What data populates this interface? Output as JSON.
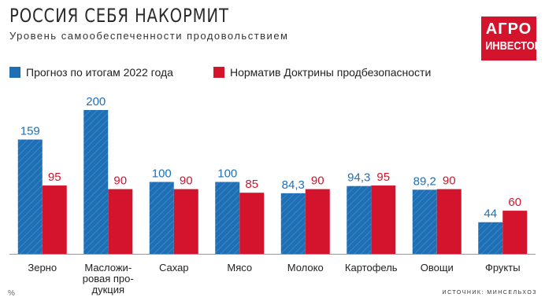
{
  "title": "РОССИЯ СЕБЯ НАКОРМИТ",
  "subtitle": "Уровень самообеспеченности продовольствием",
  "logo": {
    "line1": "АГРО",
    "line2": "ИНВЕСТОР"
  },
  "source": "ИСТОЧНИК: МИНСЕЛЬХОЗ",
  "corner_mark": "%",
  "colors": {
    "series1": "#1f6fb4",
    "series2": "#d3142c",
    "logo_bg": "#d3142c",
    "axis": "#999999"
  },
  "chart_data": {
    "type": "bar",
    "categories": [
      "Зерно",
      "Масложи-\nровая про-\nдукция",
      "Сахар",
      "Мясо",
      "Молоко",
      "Картофель",
      "Овощи",
      "Фрукты"
    ],
    "series": [
      {
        "name": "Прогноз по итогам 2022 года",
        "values": [
          159,
          200,
          100,
          100,
          84.3,
          94.3,
          89.2,
          44
        ],
        "labels": [
          "159",
          "200",
          "100",
          "100",
          "84,3",
          "94,3",
          "89,2",
          "44"
        ]
      },
      {
        "name": "Норматив Доктрины продбезопасности",
        "values": [
          95,
          90,
          90,
          85,
          90,
          95,
          90,
          60
        ],
        "labels": [
          "95",
          "90",
          "90",
          "85",
          "90",
          "95",
          "90",
          "60"
        ]
      }
    ],
    "ylim": [
      0,
      200
    ],
    "legend": "top-left",
    "grid": false
  }
}
